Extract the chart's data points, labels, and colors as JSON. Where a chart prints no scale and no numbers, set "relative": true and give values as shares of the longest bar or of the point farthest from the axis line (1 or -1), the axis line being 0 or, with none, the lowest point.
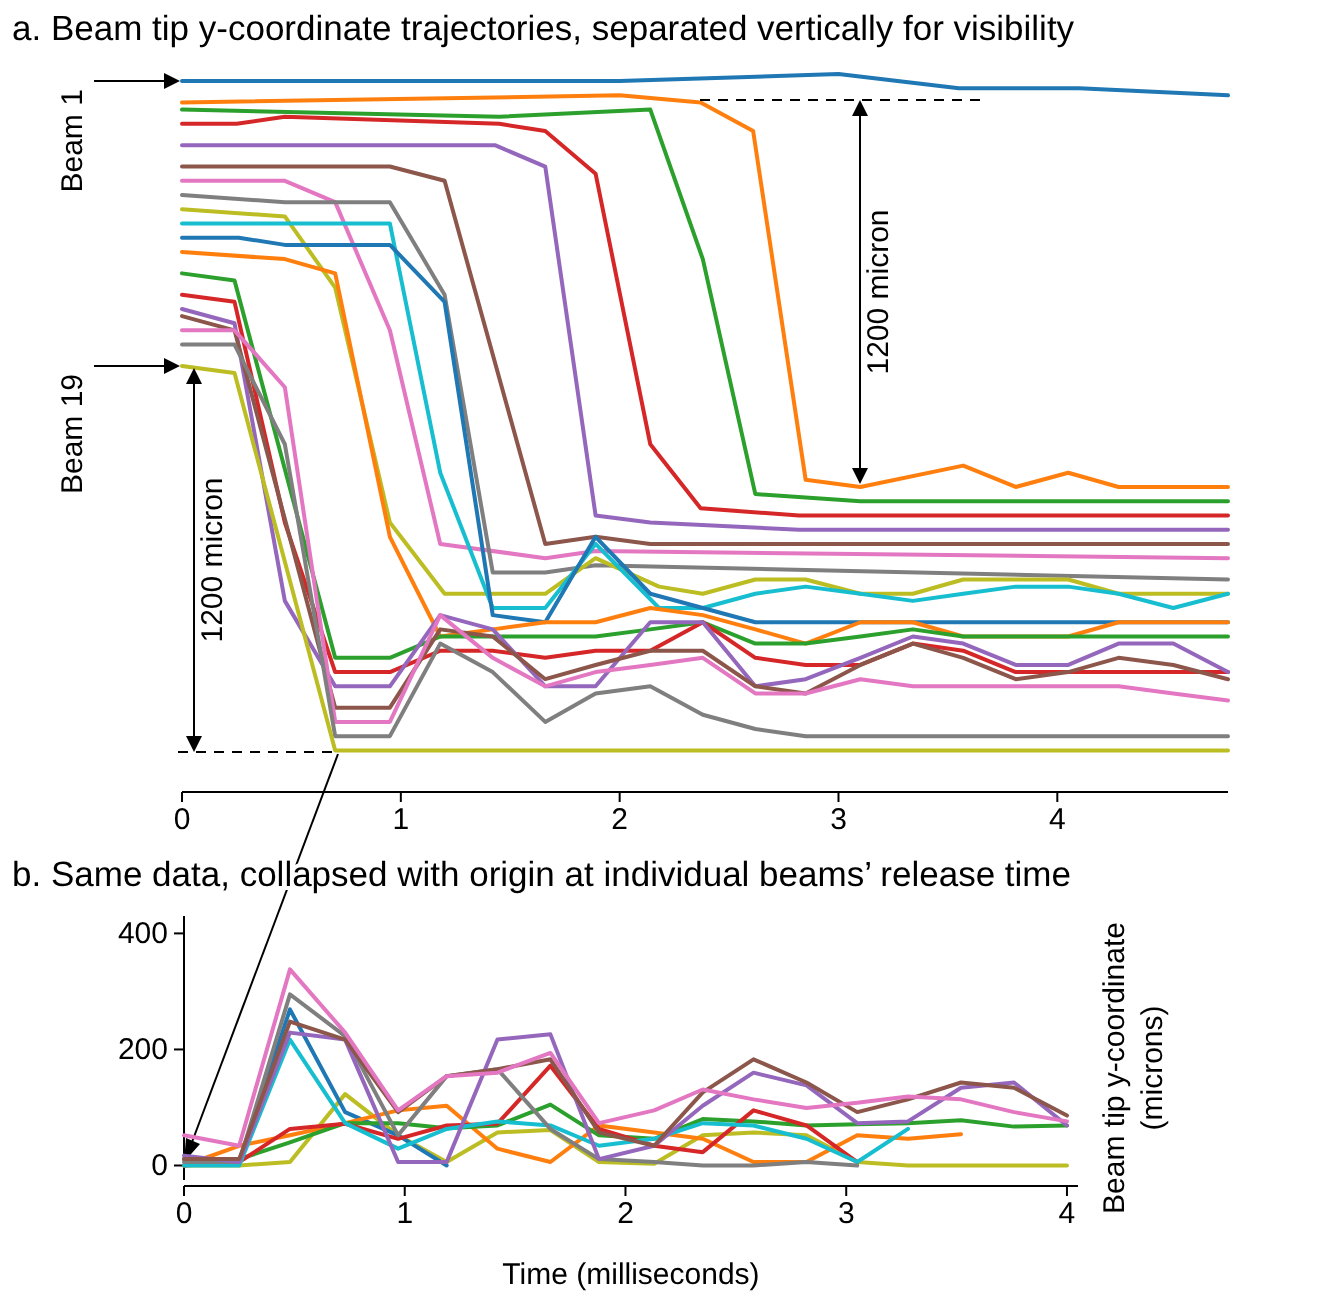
{
  "chart_data": [
    {
      "type": "line",
      "title": "a. Beam tip y-coordinate trajectories, separated vertically for visibility",
      "relative": true,
      "tick_labels": "x",
      "xlim": [
        0,
        4.78
      ],
      "xticks": [
        0,
        1,
        2,
        3,
        4
      ],
      "annotations": [
        {
          "text": "Beam 1",
          "x": 0,
          "y": 0.99
        },
        {
          "text": "Beam 19",
          "x": 0,
          "y": 0.59
        },
        "1200 micron",
        "1200 micron"
      ],
      "series": [
        {
          "color": "#1f77b4",
          "x": [
            0,
            1.0,
            2.0,
            3.0,
            3.55,
            4.1,
            4.78
          ],
          "values": [
            0.99,
            0.99,
            0.99,
            1.0,
            0.98,
            0.98,
            0.97
          ]
        },
        {
          "color": "#ff7f0e",
          "x": [
            0,
            2.0,
            2.37,
            2.61,
            2.85,
            3.1,
            3.57,
            3.81,
            4.05,
            4.28,
            4.78
          ],
          "values": [
            0.96,
            0.97,
            0.96,
            0.92,
            0.43,
            0.42,
            0.45,
            0.42,
            0.44,
            0.42,
            0.42
          ]
        },
        {
          "color": "#2ca02c",
          "x": [
            0,
            1.45,
            2.14,
            2.38,
            2.62,
            3.1,
            4.78
          ],
          "values": [
            0.95,
            0.94,
            0.95,
            0.74,
            0.41,
            0.4,
            0.4
          ]
        },
        {
          "color": "#d62728",
          "x": [
            0,
            0.25,
            0.47,
            1.45,
            1.66,
            1.89,
            2.14,
            2.37,
            2.82,
            4.78
          ],
          "values": [
            0.93,
            0.93,
            0.94,
            0.93,
            0.92,
            0.86,
            0.48,
            0.39,
            0.38,
            0.38
          ]
        },
        {
          "color": "#9467bd",
          "x": [
            0,
            1.43,
            1.66,
            1.89,
            2.14,
            2.82,
            4.78
          ],
          "values": [
            0.9,
            0.9,
            0.87,
            0.38,
            0.37,
            0.36,
            0.36
          ]
        },
        {
          "color": "#8c564b",
          "x": [
            0,
            0.95,
            1.2,
            1.66,
            1.89,
            2.14,
            4.78
          ],
          "values": [
            0.87,
            0.87,
            0.85,
            0.34,
            0.35,
            0.34,
            0.34
          ]
        },
        {
          "color": "#e377c2",
          "x": [
            0,
            0.47,
            0.7,
            0.95,
            1.18,
            1.66,
            1.89,
            4.78
          ],
          "values": [
            0.85,
            0.85,
            0.82,
            0.64,
            0.34,
            0.32,
            0.33,
            0.32
          ]
        },
        {
          "color": "#7f7f7f",
          "x": [
            0,
            0.47,
            0.95,
            1.2,
            1.42,
            1.66,
            1.89,
            4.78
          ],
          "values": [
            0.83,
            0.82,
            0.82,
            0.69,
            0.3,
            0.3,
            0.31,
            0.29
          ]
        },
        {
          "color": "#bcbd22",
          "x": [
            0,
            0.47,
            0.7,
            0.95,
            1.2,
            1.66,
            1.89,
            2.18,
            2.38,
            2.62,
            2.85,
            3.1,
            3.34,
            3.57,
            3.81,
            4.05,
            4.28,
            4.78
          ],
          "values": [
            0.81,
            0.8,
            0.7,
            0.37,
            0.27,
            0.27,
            0.32,
            0.28,
            0.27,
            0.29,
            0.29,
            0.27,
            0.27,
            0.29,
            0.29,
            0.29,
            0.27,
            0.27
          ]
        },
        {
          "color": "#17becf",
          "x": [
            0,
            0.95,
            1.18,
            1.42,
            1.66,
            1.89,
            2.18,
            2.38,
            2.62,
            2.85,
            3.1,
            3.34,
            3.57,
            3.81,
            4.05,
            4.28,
            4.53,
            4.78
          ],
          "values": [
            0.79,
            0.79,
            0.44,
            0.25,
            0.25,
            0.34,
            0.25,
            0.25,
            0.27,
            0.28,
            0.27,
            0.26,
            0.27,
            0.28,
            0.28,
            0.27,
            0.25,
            0.27
          ]
        },
        {
          "color": "#1f77b4",
          "x": [
            0,
            0.26,
            0.47,
            0.95,
            1.2,
            1.42,
            1.66,
            1.89,
            2.14,
            2.38,
            2.62,
            4.78
          ],
          "values": [
            0.77,
            0.77,
            0.76,
            0.76,
            0.68,
            0.24,
            0.23,
            0.35,
            0.27,
            0.25,
            0.23,
            0.23
          ]
        },
        {
          "color": "#ff7f0e",
          "x": [
            0,
            0.47,
            0.7,
            0.95,
            1.18,
            1.42,
            1.66,
            1.89,
            2.14,
            2.38,
            2.62,
            2.85,
            3.1,
            3.34,
            3.57,
            3.81,
            4.05,
            4.28,
            4.78
          ],
          "values": [
            0.75,
            0.74,
            0.72,
            0.35,
            0.21,
            0.22,
            0.23,
            0.23,
            0.25,
            0.24,
            0.22,
            0.2,
            0.23,
            0.23,
            0.21,
            0.21,
            0.21,
            0.23,
            0.23
          ]
        },
        {
          "color": "#2ca02c",
          "x": [
            0,
            0.24,
            0.7,
            0.95,
            1.18,
            1.42,
            1.66,
            1.89,
            2.14,
            2.38,
            2.62,
            2.85,
            3.1,
            3.34,
            3.57,
            4.78
          ],
          "values": [
            0.72,
            0.71,
            0.18,
            0.18,
            0.21,
            0.21,
            0.21,
            0.21,
            0.22,
            0.23,
            0.2,
            0.2,
            0.21,
            0.22,
            0.21,
            0.21
          ]
        },
        {
          "color": "#d62728",
          "x": [
            0,
            0.24,
            0.47,
            0.7,
            0.95,
            1.18,
            1.42,
            1.66,
            1.89,
            2.14,
            2.38,
            2.62,
            2.85,
            3.1,
            3.34,
            3.57,
            3.81,
            4.05,
            4.28,
            4.78
          ],
          "values": [
            0.69,
            0.68,
            0.37,
            0.16,
            0.16,
            0.19,
            0.19,
            0.18,
            0.19,
            0.19,
            0.23,
            0.18,
            0.17,
            0.17,
            0.2,
            0.19,
            0.16,
            0.16,
            0.16,
            0.16
          ]
        },
        {
          "color": "#9467bd",
          "x": [
            0,
            0.24,
            0.47,
            0.7,
            0.95,
            1.18,
            1.42,
            1.66,
            1.89,
            2.14,
            2.38,
            2.62,
            2.85,
            3.1,
            3.34,
            3.57,
            3.81,
            4.05,
            4.28,
            4.53,
            4.78
          ],
          "values": [
            0.67,
            0.65,
            0.26,
            0.14,
            0.14,
            0.24,
            0.22,
            0.14,
            0.14,
            0.23,
            0.23,
            0.14,
            0.15,
            0.18,
            0.21,
            0.2,
            0.17,
            0.17,
            0.2,
            0.2,
            0.16
          ]
        },
        {
          "color": "#8c564b",
          "x": [
            0,
            0.24,
            0.7,
            0.95,
            1.18,
            1.42,
            1.66,
            1.89,
            2.14,
            2.38,
            2.62,
            2.85,
            3.1,
            3.34,
            3.57,
            3.81,
            4.05,
            4.28,
            4.53,
            4.78
          ],
          "values": [
            0.66,
            0.64,
            0.11,
            0.11,
            0.22,
            0.21,
            0.15,
            0.17,
            0.19,
            0.19,
            0.14,
            0.13,
            0.17,
            0.2,
            0.18,
            0.15,
            0.16,
            0.18,
            0.17,
            0.15
          ]
        },
        {
          "color": "#e377c2",
          "x": [
            0,
            0.24,
            0.47,
            0.7,
            0.95,
            1.18,
            1.42,
            1.66,
            1.89,
            2.14,
            2.38,
            2.62,
            2.85,
            3.1,
            3.34,
            3.57,
            3.81,
            4.05,
            4.28,
            4.53,
            4.78
          ],
          "values": [
            0.64,
            0.64,
            0.56,
            0.09,
            0.09,
            0.24,
            0.18,
            0.14,
            0.16,
            0.17,
            0.18,
            0.13,
            0.13,
            0.15,
            0.14,
            0.14,
            0.14,
            0.14,
            0.14,
            0.13,
            0.12
          ]
        },
        {
          "color": "#7f7f7f",
          "x": [
            0,
            0.24,
            0.47,
            0.7,
            0.95,
            1.18,
            1.42,
            1.66,
            1.89,
            2.14,
            2.38,
            2.62,
            2.85,
            4.78
          ],
          "values": [
            0.62,
            0.62,
            0.48,
            0.07,
            0.07,
            0.2,
            0.16,
            0.09,
            0.13,
            0.14,
            0.1,
            0.08,
            0.07,
            0.07
          ]
        },
        {
          "color": "#bcbd22",
          "x": [
            0,
            0.24,
            0.7,
            1.66,
            2.0,
            4.78
          ],
          "values": [
            0.59,
            0.58,
            0.05,
            0.05,
            0.05,
            0.05
          ]
        }
      ]
    },
    {
      "type": "line",
      "title": "b.  Same data, collapsed with origin at individual beams’ release time",
      "xlabel": "Time (milliseconds)",
      "ylabel": "Beam tip y-coordinate (microns)",
      "xlim": [
        0,
        4.05
      ],
      "ylim": [
        -25,
        430
      ],
      "xticks": [
        0,
        1,
        2,
        3,
        4
      ],
      "yticks": [
        0,
        200,
        400
      ],
      "x": [
        0,
        0.25,
        0.48,
        0.73,
        0.97,
        1.19,
        1.42,
        1.66,
        1.88,
        2.13,
        2.35,
        2.58,
        2.82,
        3.05,
        3.28,
        3.52,
        3.76,
        4.0
      ],
      "series": [
        {
          "color": "#bcbd22",
          "values": [
            0,
            0,
            6,
            123,
            52,
            6,
            57,
            61,
            6,
            3,
            52,
            57,
            52,
            6,
            0,
            0,
            0,
            0
          ]
        },
        {
          "color": "#1f77b4",
          "values": [
            11,
            6,
            269,
            92,
            52,
            0,
            null,
            null,
            null,
            null,
            null,
            null,
            null,
            null,
            null,
            null,
            null,
            null
          ]
        },
        {
          "color": "#ff7f0e",
          "values": [
            0,
            34,
            52,
            73,
            95,
            103,
            29,
            6,
            69,
            57,
            46,
            6,
            6,
            52,
            46,
            54,
            null,
            null
          ]
        },
        {
          "color": "#2ca02c",
          "values": [
            0,
            11,
            40,
            73,
            73,
            64,
            69,
            105,
            52,
            46,
            80,
            76,
            69,
            71,
            73,
            78,
            67,
            69
          ]
        },
        {
          "color": "#d62728",
          "values": [
            0,
            6,
            63,
            72,
            46,
            69,
            72,
            172,
            63,
            34,
            23,
            95,
            69,
            6,
            null,
            null,
            null,
            null
          ]
        },
        {
          "color": "#17becf",
          "values": [
            0,
            0,
            217,
            73,
            29,
            63,
            76,
            69,
            34,
            46,
            73,
            69,
            46,
            6,
            63,
            null,
            null,
            null
          ]
        },
        {
          "color": "#7f7f7f",
          "values": [
            6,
            6,
            295,
            223,
            52,
            154,
            166,
            63,
            11,
            6,
            0,
            0,
            6,
            0,
            null,
            null,
            null,
            null
          ]
        },
        {
          "color": "#9467bd",
          "values": [
            17,
            6,
            229,
            217,
            6,
            6,
            217,
            226,
            11,
            34,
            103,
            160,
            138,
            73,
            76,
            134,
            143,
            69
          ]
        },
        {
          "color": "#8c564b",
          "values": [
            11,
            11,
            248,
            217,
            92,
            154,
            166,
            183,
            57,
            34,
            126,
            183,
            143,
            92,
            114,
            143,
            134,
            86
          ]
        },
        {
          "color": "#e377c2",
          "values": [
            52,
            34,
            338,
            229,
            95,
            154,
            160,
            194,
            73,
            95,
            131,
            114,
            99,
            108,
            119,
            114,
            92,
            76
          ]
        }
      ]
    }
  ]
}
